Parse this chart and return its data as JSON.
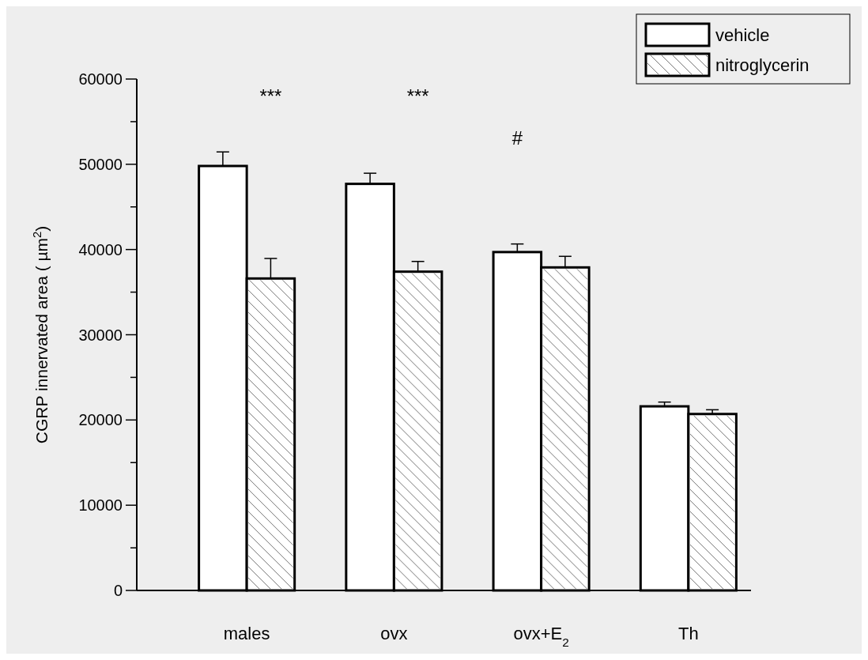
{
  "chart_data": {
    "type": "bar",
    "ylabel": "CGRP innervated area (  µm$^{2}$)",
    "categories": [
      "males",
      "ovx",
      "ovx+E$_{2}$",
      "Th"
    ],
    "series": [
      {
        "name": "vehicle",
        "color": "#ffffff",
        "values": [
          49800,
          47700,
          39700,
          21600
        ],
        "errors": [
          1650,
          1250,
          950,
          500
        ]
      },
      {
        "name": "nitroglycerin",
        "color": "#ffffff",
        "values": [
          36600,
          37400,
          37900,
          20700
        ],
        "errors": [
          2350,
          1200,
          1300,
          500
        ]
      }
    ],
    "ylim": [
      0,
      60000
    ],
    "yticks": [
      0,
      {
        "value": 5000,
        "label": null
      },
      10000,
      {
        "value": 15000,
        "label": null
      },
      20000,
      {
        "value": 25000,
        "label": null
      },
      30000,
      {
        "value": 35000,
        "label": null
      },
      40000,
      {
        "value": 45000,
        "label": null
      },
      50000,
      {
        "value": 55000,
        "label": null
      },
      60000
    ],
    "annotations": [
      "***",
      "***",
      "#"
    ],
    "legend": "top right",
    "grid": false
  }
}
